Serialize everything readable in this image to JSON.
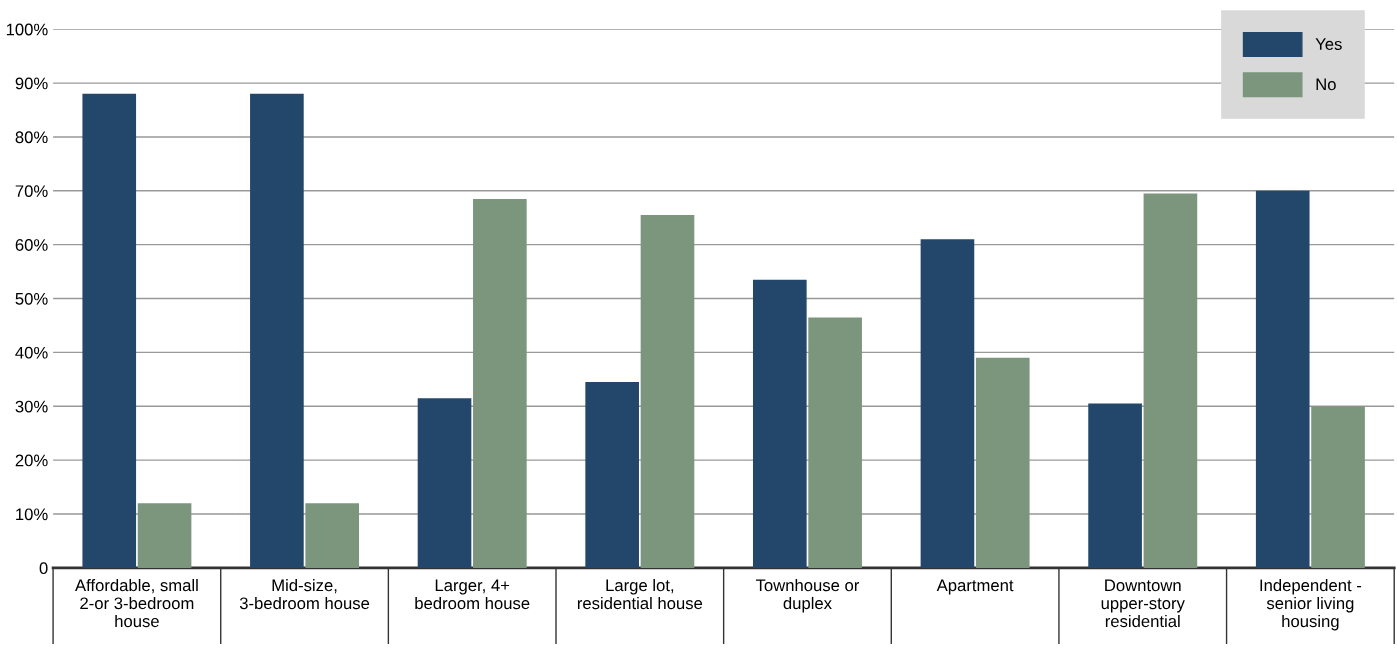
{
  "chart_data": {
    "type": "bar",
    "categories": [
      "Affordable, small\n2-or 3-bedroom\nhouse",
      "Mid-size,\n3-bedroom house",
      "Larger, 4+\nbedroom house",
      "Large lot,\nresidential house",
      "Townhouse or\nduplex",
      "Apartment",
      "Downtown\nupper-story\nresidential",
      "Independent -\nsenior living\nhousing"
    ],
    "series": [
      {
        "name": "Yes",
        "color": "#23476a",
        "values": [
          88,
          88,
          31.5,
          34.5,
          53.5,
          61,
          30.5,
          70
        ]
      },
      {
        "name": "No",
        "color": "#7b967c",
        "values": [
          12,
          12,
          68.5,
          65.5,
          46.5,
          39,
          69.5,
          30
        ]
      }
    ],
    "ylim": [
      0,
      100
    ],
    "yticks": [
      {
        "value": 0,
        "label": "0"
      },
      {
        "value": 10,
        "label": "10%"
      },
      {
        "value": 20,
        "label": "20%"
      },
      {
        "value": 30,
        "label": "30%"
      },
      {
        "value": 40,
        "label": "40%"
      },
      {
        "value": 50,
        "label": "50%"
      },
      {
        "value": 60,
        "label": "60%"
      },
      {
        "value": 70,
        "label": "70%"
      },
      {
        "value": 80,
        "label": "80%"
      },
      {
        "value": 90,
        "label": "90%"
      },
      {
        "value": 100,
        "label": "100%"
      }
    ],
    "grid": "y",
    "legend": "top right"
  }
}
